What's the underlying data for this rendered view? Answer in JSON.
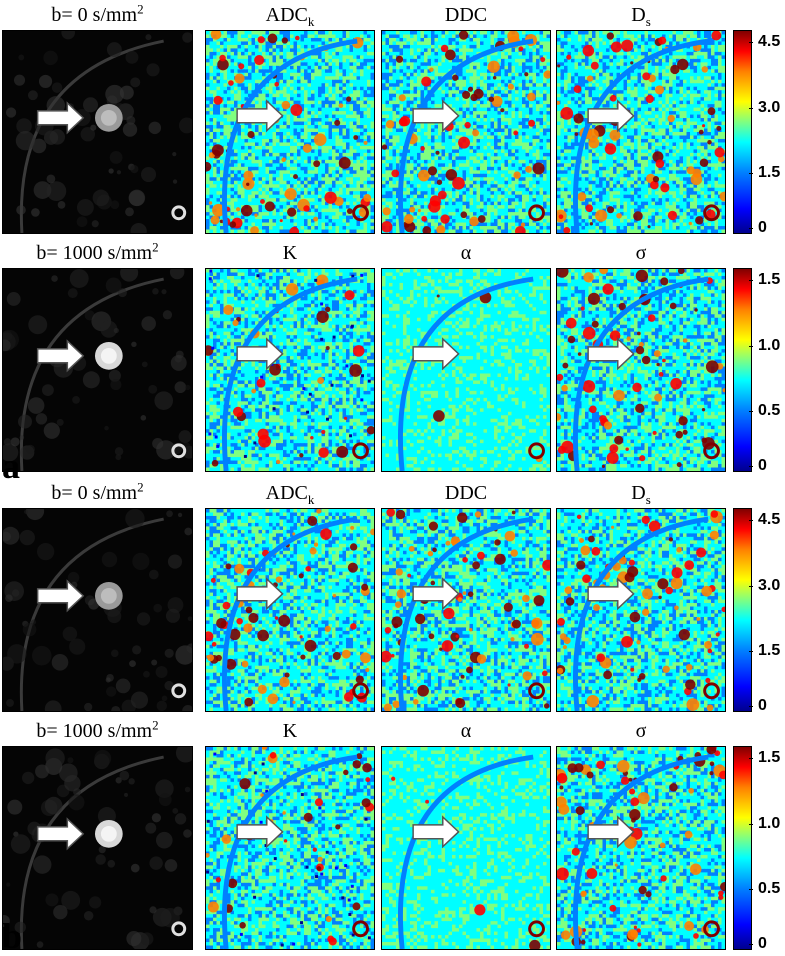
{
  "figure": {
    "rows": [
      {
        "labels": [
          "b= 0 s/mm",
          "ADC",
          "DDC",
          "D"
        ],
        "label_sups": [
          "2",
          "",
          "",
          ""
        ],
        "label_subs": [
          "",
          "k",
          "",
          "s"
        ],
        "colorbar_ticks": [
          "4.5",
          "3.0",
          "1.5",
          "0"
        ]
      },
      {
        "labels": [
          "b= 1000 s/mm",
          "K",
          "α",
          "σ"
        ],
        "label_sups": [
          "2",
          "",
          "",
          ""
        ],
        "label_subs": [
          "",
          "",
          "",
          ""
        ],
        "colorbar_ticks": [
          "1.5",
          "1.0",
          "0.5",
          "0"
        ]
      },
      {
        "labels": [
          "b= 0 s/mm",
          "ADC",
          "DDC",
          "D"
        ],
        "label_sups": [
          "2",
          "",
          "",
          ""
        ],
        "label_subs": [
          "",
          "k",
          "",
          "s"
        ],
        "colorbar_ticks": [
          "4.5",
          "3.0",
          "1.5",
          "0"
        ]
      },
      {
        "labels": [
          "b= 1000 s/mm",
          "K",
          "α",
          "σ"
        ],
        "label_sups": [
          "2",
          "",
          "",
          ""
        ],
        "label_subs": [
          "",
          "",
          "",
          ""
        ],
        "colorbar_ticks": [
          "1.5",
          "1.0",
          "0.5",
          "0"
        ]
      }
    ],
    "group_labels": [
      "a",
      "b"
    ],
    "colormap": [
      "#00008f",
      "#0000ff",
      "#0080ff",
      "#00ffff",
      "#80ff80",
      "#ffff00",
      "#ff8000",
      "#ff0000",
      "#800000"
    ]
  }
}
